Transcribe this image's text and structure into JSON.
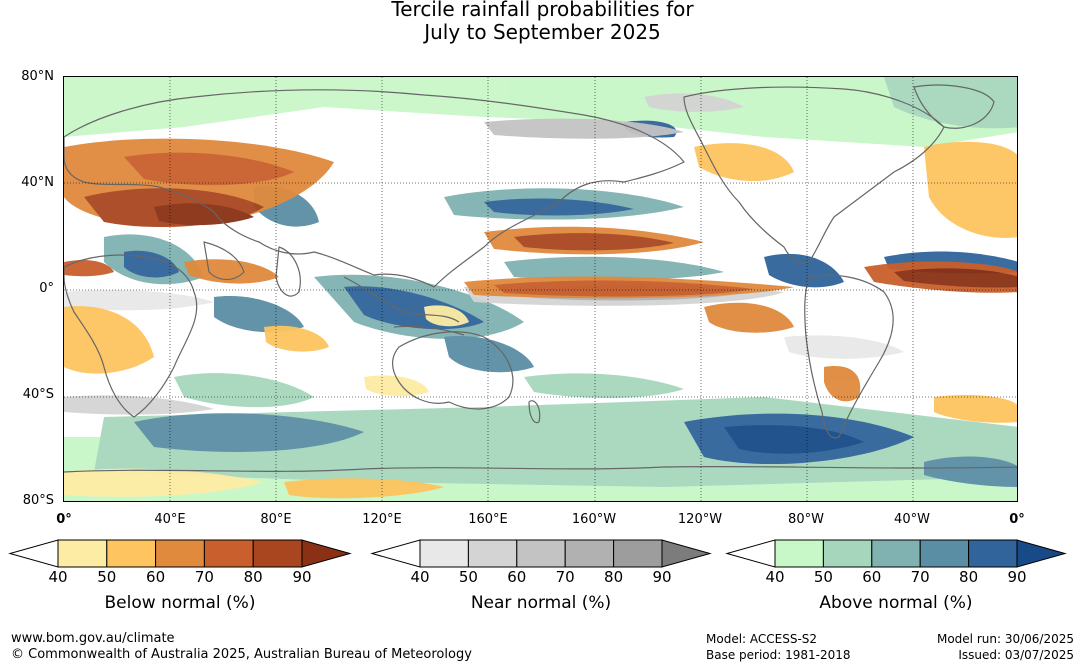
{
  "title": {
    "line1": "Tercile rainfall probabilities for",
    "line2": "July to September 2025"
  },
  "map": {
    "lat_labels": [
      "80°N",
      "40°N",
      "0°",
      "40°S",
      "80°S"
    ],
    "lon_labels": [
      "0°",
      "40°E",
      "80°E",
      "120°E",
      "160°E",
      "160°W",
      "120°W",
      "80°W",
      "40°W",
      "0°"
    ],
    "ocean_color": "#ffffff",
    "land_outline_color": "#666666",
    "grid_style": "dotted"
  },
  "colorbars": [
    {
      "label": "Below normal (%)",
      "ticks": [
        "40",
        "50",
        "60",
        "70",
        "80",
        "90"
      ],
      "colors": [
        "#ffffff",
        "#fdeca3",
        "#fdc45f",
        "#e08a3e",
        "#c95f2c",
        "#a9461f",
        "#8a3115"
      ]
    },
    {
      "label": "Near normal (%)",
      "ticks": [
        "40",
        "50",
        "60",
        "70",
        "80",
        "90"
      ],
      "colors": [
        "#ffffff",
        "#e8e8e8",
        "#d4d4d4",
        "#c3c3c3",
        "#b1b1b1",
        "#9d9d9d",
        "#7c7c7c"
      ]
    },
    {
      "label": "Above normal (%)",
      "ticks": [
        "40",
        "50",
        "60",
        "70",
        "80",
        "90"
      ],
      "colors": [
        "#ffffff",
        "#c8f7c8",
        "#a6d7bc",
        "#7fb2b0",
        "#5a8ea4",
        "#30649a",
        "#174a86"
      ]
    }
  ],
  "footer": {
    "website": "www.bom.gov.au/climate",
    "copyright": "© Commonwealth of Australia 2025, Australian Bureau of Meteorology",
    "model": "Model: ACCESS-S2",
    "base_period": "Base period: 1981-2018",
    "model_run": "Model run: 30/06/2025",
    "issued": "Issued: 03/07/2025"
  }
}
